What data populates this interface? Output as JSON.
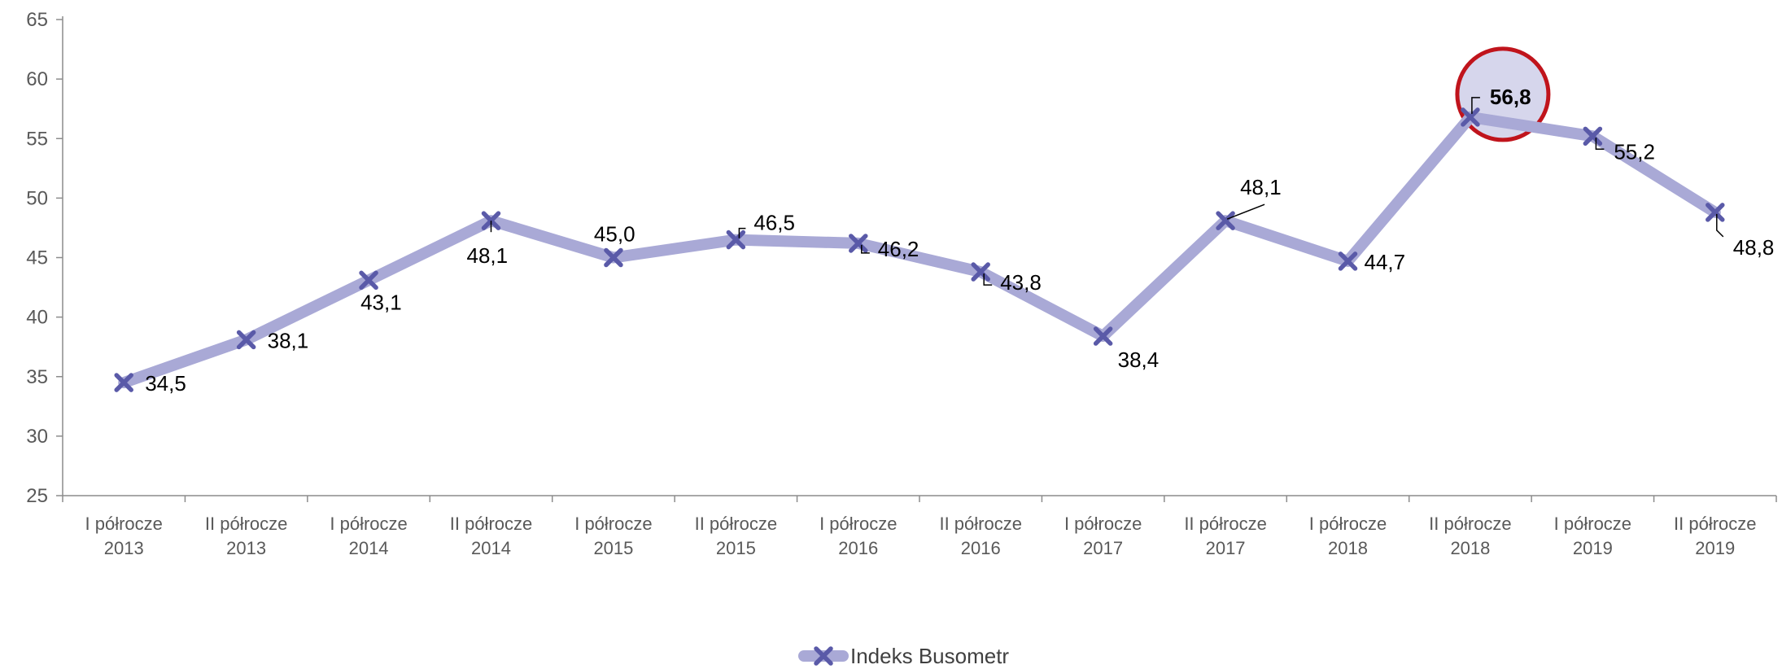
{
  "chart_data": {
    "type": "line",
    "title": "",
    "xlabel": "",
    "ylabel": "",
    "ylim": [
      25,
      65
    ],
    "yticks": [
      25,
      30,
      35,
      40,
      45,
      50,
      55,
      60,
      65
    ],
    "grid": false,
    "legend_position": "bottom",
    "categories": [
      [
        "I półrocze",
        "2013"
      ],
      [
        "II półrocze",
        "2013"
      ],
      [
        "I półrocze",
        "2014"
      ],
      [
        "II półrocze",
        "2014"
      ],
      [
        "I półrocze",
        "2015"
      ],
      [
        "II półrocze",
        "2015"
      ],
      [
        "I półrocze",
        "2016"
      ],
      [
        "II półrocze",
        "2016"
      ],
      [
        "I półrocze",
        "2017"
      ],
      [
        "II półrocze",
        "2017"
      ],
      [
        "I półrocze",
        "2018"
      ],
      [
        "II półrocze",
        "2018"
      ],
      [
        "I półrocze",
        "2019"
      ],
      [
        "II półrocze",
        "2019"
      ]
    ],
    "series": [
      {
        "name": "Indeks Busometr",
        "values": [
          34.5,
          38.1,
          43.1,
          48.1,
          45.0,
          46.5,
          46.2,
          43.8,
          38.4,
          48.1,
          44.7,
          56.8,
          55.2,
          48.8
        ],
        "labels": [
          "34,5",
          "38,1",
          "43,1",
          "48,1",
          "45,0",
          "46,5",
          "46,2",
          "43,8",
          "38,4",
          "48,1",
          "44,7",
          "56,8",
          "55,2",
          "48,8"
        ],
        "line_color": "#A9A9D6",
        "marker_color": "#5A5AA8",
        "marker": "x"
      }
    ],
    "highlight": {
      "index": 11,
      "circle_stroke": "#C0141C",
      "circle_fill": "#D6D6EC"
    }
  }
}
